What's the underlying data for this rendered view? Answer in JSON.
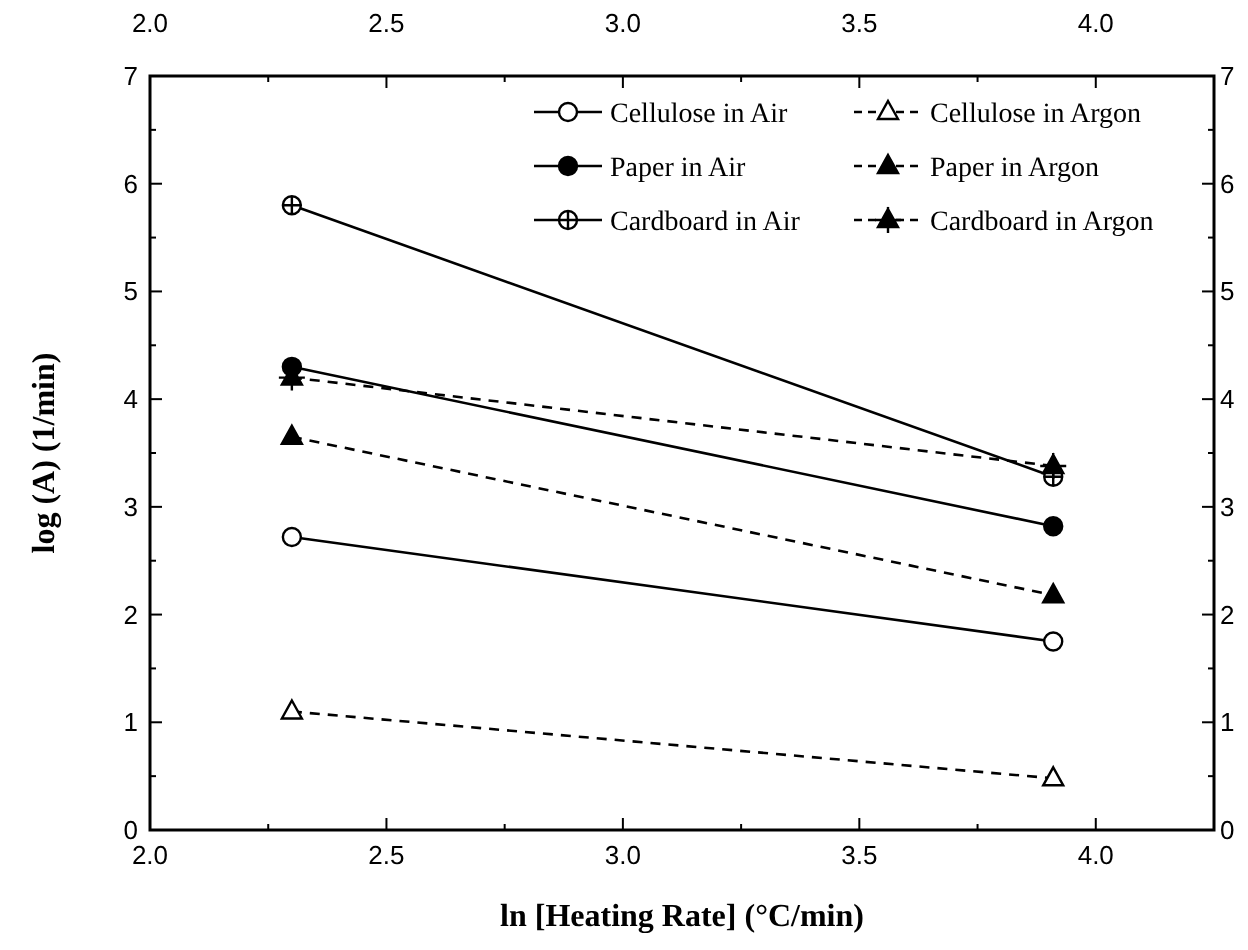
{
  "chart_data": {
    "type": "line",
    "xlabel": "ln [Heating Rate] (°C/min)",
    "ylabel": "log (A) (1/min)",
    "x": [
      2.3,
      3.91
    ],
    "xlim": [
      2.0,
      4.25
    ],
    "xticks": [
      {
        "value": 2,
        "label": "2.0"
      },
      {
        "value": 2.25,
        "label": null
      },
      2.5,
      {
        "value": 2.75,
        "label": null
      },
      {
        "value": 3,
        "label": "3.0"
      },
      {
        "value": 3.25,
        "label": null
      },
      3.5,
      {
        "value": 3.75,
        "label": null
      },
      {
        "value": 4,
        "label": "4.0"
      }
    ],
    "x2lim": [
      2.0,
      4.25
    ],
    "x2ticks": [
      {
        "value": 2,
        "label": "2.0"
      },
      {
        "value": 2.25,
        "label": null
      },
      2.5,
      {
        "value": 2.75,
        "label": null
      },
      {
        "value": 3,
        "label": "3.0"
      },
      {
        "value": 3.25,
        "label": null
      },
      3.5,
      {
        "value": 3.75,
        "label": null
      },
      {
        "value": 4,
        "label": "4.0"
      }
    ],
    "ylim": [
      0,
      7
    ],
    "yticks": [
      0,
      {
        "value": 0.5,
        "label": null
      },
      1,
      {
        "value": 1.5,
        "label": null
      },
      2,
      {
        "value": 2.5,
        "label": null
      },
      3,
      {
        "value": 3.5,
        "label": null
      },
      4,
      {
        "value": 4.5,
        "label": null
      },
      5,
      {
        "value": 5.5,
        "label": null
      },
      6,
      {
        "value": 6.5,
        "label": null
      },
      7
    ],
    "y2lim": [
      0,
      7
    ],
    "y2ticks": [
      0,
      {
        "value": 0.5,
        "label": null
      },
      1,
      {
        "value": 1.5,
        "label": null
      },
      2,
      {
        "value": 2.5,
        "label": null
      },
      3,
      {
        "value": 3.5,
        "label": null
      },
      4,
      {
        "value": 4.5,
        "label": null
      },
      5,
      {
        "value": 5.5,
        "label": null
      },
      6,
      {
        "value": 6.5,
        "label": null
      },
      7
    ],
    "legend": "top right",
    "series": [
      {
        "name": "Cellulose in Air",
        "color": "#000000",
        "values": [
          2.72,
          1.75
        ],
        "marker": "circle",
        "line_style": "solid"
      },
      {
        "name": "Paper in Air",
        "color": "#000000",
        "values": [
          4.3,
          2.82
        ],
        "marker": "circle",
        "line_style": "solid"
      },
      {
        "name": "Cardboard in Air",
        "color": "#000000",
        "values": [
          5.8,
          3.28
        ],
        "marker": "cross",
        "line_style": "solid"
      },
      {
        "name": "Cellulose in Argon",
        "color": "#000000",
        "values": [
          1.1,
          0.48
        ],
        "marker": "triangle",
        "line_style": "dashed"
      },
      {
        "name": "Paper in Argon",
        "color": "#000000",
        "values": [
          3.65,
          2.18
        ],
        "marker": "triangle",
        "line_style": "dashed"
      },
      {
        "name": "Cardboard in Argon",
        "color": "#000000",
        "values": [
          4.2,
          3.38
        ],
        "marker": "cross",
        "line_style": "dashed"
      }
    ]
  }
}
